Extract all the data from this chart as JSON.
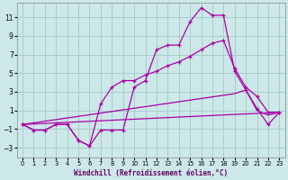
{
  "xlabel": "Windchill (Refroidissement éolien,°C)",
  "ylabel": "",
  "xlim": [
    -0.5,
    23.5
  ],
  "ylim": [
    -4,
    12.5
  ],
  "yticks": [
    -3,
    -1,
    1,
    3,
    5,
    7,
    9,
    11
  ],
  "xticks": [
    0,
    1,
    2,
    3,
    4,
    5,
    6,
    7,
    8,
    9,
    10,
    11,
    12,
    13,
    14,
    15,
    16,
    17,
    18,
    19,
    20,
    21,
    22,
    23
  ],
  "bg_color": "#cce8e8",
  "grid_color": "#aacccc",
  "line_color": "#aa00aa",
  "line1_x": [
    0,
    1,
    2,
    3,
    4,
    5,
    6,
    7,
    8,
    9,
    10,
    11,
    12,
    13,
    14,
    15,
    16,
    17,
    18,
    19,
    20,
    21,
    22,
    23
  ],
  "line1_y": [
    -0.5,
    -1.1,
    -1.1,
    -0.5,
    -0.5,
    -2.2,
    -2.8,
    -1.1,
    -1.1,
    -1.1,
    3.5,
    4.2,
    7.5,
    8.0,
    8.0,
    10.5,
    12.0,
    11.2,
    11.2,
    5.2,
    3.2,
    1.2,
    -0.5,
    0.8
  ],
  "line2_x": [
    0,
    1,
    2,
    3,
    4,
    5,
    6,
    7,
    8,
    9,
    10,
    11,
    12,
    13,
    14,
    15,
    16,
    17,
    18,
    19,
    20,
    21,
    22,
    23
  ],
  "line2_y": [
    -0.5,
    -1.1,
    -1.1,
    -0.5,
    -0.5,
    -2.2,
    -2.8,
    1.7,
    3.5,
    4.2,
    4.2,
    4.8,
    5.2,
    5.8,
    6.2,
    6.8,
    7.5,
    8.2,
    8.5,
    5.5,
    3.5,
    2.5,
    0.8,
    0.8
  ],
  "line3_x": [
    0,
    23
  ],
  "line3_y": [
    -0.5,
    0.8
  ],
  "line4_x": [
    0,
    19,
    20,
    21,
    22,
    23
  ],
  "line4_y": [
    -0.5,
    2.8,
    3.2,
    1.0,
    0.5,
    0.8
  ]
}
